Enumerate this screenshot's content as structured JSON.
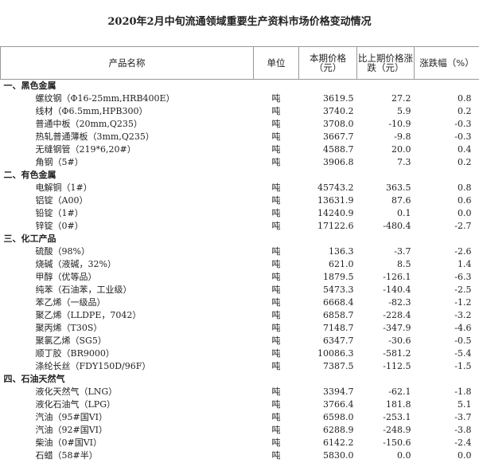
{
  "header": {
    "title": "2020年2月中旬流通领域重要生产资料市场价格变动情况"
  },
  "table": {
    "columns": [
      "产品名称",
      "单位",
      "本期价格（元）",
      "比上期价格涨跌（元）",
      "涨跌幅（%）"
    ],
    "sections": [
      {
        "title": "一、黑色金属",
        "rows": [
          [
            "螺纹钢（Φ16-25mm,HRB400E）",
            "吨",
            "3619.5",
            "27.2",
            "0.8"
          ],
          [
            "线材（Φ6.5mm,HPB300）",
            "吨",
            "3740.2",
            "5.9",
            "0.2"
          ],
          [
            "普通中板（20mm,Q235）",
            "吨",
            "3708.0",
            "-10.9",
            "-0.3"
          ],
          [
            "热轧普通薄板（3mm,Q235）",
            "吨",
            "3667.7",
            "-9.8",
            "-0.3"
          ],
          [
            "无缝钢管（219*6,20#）",
            "吨",
            "4588.7",
            "20.0",
            "0.4"
          ],
          [
            "角钢（5#）",
            "吨",
            "3906.8",
            "7.3",
            "0.2"
          ]
        ]
      },
      {
        "title": "二、有色金属",
        "rows": [
          [
            "电解铜（1#）",
            "吨",
            "45743.2",
            "363.5",
            "0.8"
          ],
          [
            "铝锭（A00）",
            "吨",
            "13631.9",
            "87.6",
            "0.6"
          ],
          [
            "铅锭（1#）",
            "吨",
            "14240.9",
            "0.1",
            "0.0"
          ],
          [
            "锌锭（0#）",
            "吨",
            "17122.6",
            "-480.4",
            "-2.7"
          ]
        ]
      },
      {
        "title": "三、化工产品",
        "rows": [
          [
            "硫酸（98%）",
            "吨",
            "136.3",
            "-3.7",
            "-2.6"
          ],
          [
            "烧碱（液碱，32%）",
            "吨",
            "621.0",
            "8.5",
            "1.4"
          ],
          [
            "甲醇（优等品）",
            "吨",
            "1879.5",
            "-126.1",
            "-6.3"
          ],
          [
            "纯苯（石油苯，工业级）",
            "吨",
            "5473.3",
            "-140.4",
            "-2.5"
          ],
          [
            "苯乙烯（一级品）",
            "吨",
            "6668.4",
            "-82.3",
            "-1.2"
          ],
          [
            "聚乙烯（LLDPE，7042）",
            "吨",
            "6858.7",
            "-228.4",
            "-3.2"
          ],
          [
            "聚丙烯（T30S）",
            "吨",
            "7148.7",
            "-347.9",
            "-4.6"
          ],
          [
            "聚氯乙烯（SG5）",
            "吨",
            "6347.7",
            "-30.6",
            "-0.5"
          ],
          [
            "顺丁胶（BR9000）",
            "吨",
            "10086.3",
            "-581.2",
            "-5.4"
          ],
          [
            "涤纶长丝（FDY150D/96F）",
            "吨",
            "7387.5",
            "-112.5",
            "-1.5"
          ]
        ]
      },
      {
        "title": "四、石油天然气",
        "rows": [
          [
            "液化天然气（LNG）",
            "吨",
            "3394.7",
            "-62.1",
            "-1.8"
          ],
          [
            "液化石油气（LPG）",
            "吨",
            "3766.4",
            "181.8",
            "5.1"
          ],
          [
            "汽油（95#国VI）",
            "吨",
            "6598.0",
            "-253.1",
            "-3.7"
          ],
          [
            "汽油（92#国VI）",
            "吨",
            "6288.9",
            "-248.9",
            "-3.8"
          ],
          [
            "柴油（0#国VI）",
            "吨",
            "6142.2",
            "-150.6",
            "-2.4"
          ],
          [
            "石蜡（58#半）",
            "吨",
            "5830.0",
            "0.0",
            "0.0"
          ]
        ]
      }
    ]
  }
}
